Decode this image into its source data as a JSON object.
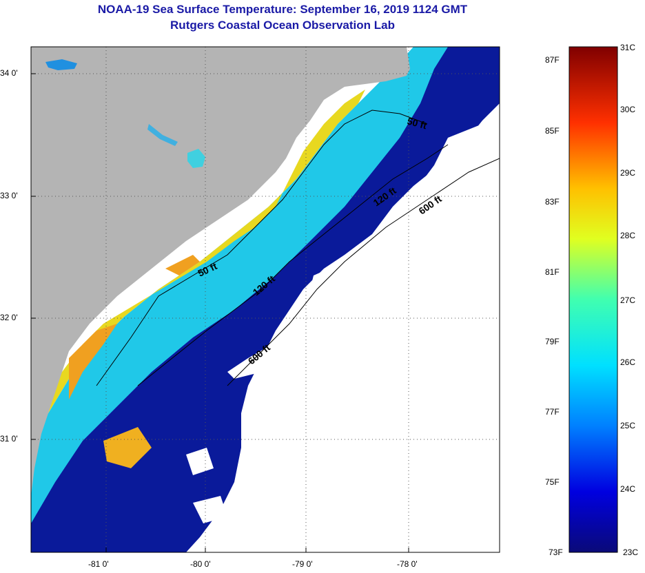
{
  "header": {
    "title_line1": "NOAA-19 Sea Surface Temperature:  September 16, 2019 1124 GMT",
    "title_line2": "Rutgers Coastal Ocean Observation Lab"
  },
  "map": {
    "lat_ticks": [
      "34 0'",
      "33 0'",
      "32 0'",
      "31 0'"
    ],
    "lon_ticks": [
      "-81 0'",
      "-80 0'",
      "-79 0'",
      "-78 0'"
    ],
    "contour_labels": [
      "50 ft",
      "50 ft",
      "120 ft",
      "120 ft",
      "600 ft",
      "600 ft"
    ],
    "colors": {
      "land": "#b4b4b4",
      "cloud": "#ffffff",
      "deep": "#0a1a9a"
    }
  },
  "colorbar": {
    "fahrenheit": [
      "87F",
      "85F",
      "83F",
      "81F",
      "79F",
      "77F",
      "75F",
      "73F"
    ],
    "celsius": [
      "31C",
      "30C",
      "29C",
      "28C",
      "27C",
      "26C",
      "25C",
      "24C",
      "23C"
    ]
  }
}
